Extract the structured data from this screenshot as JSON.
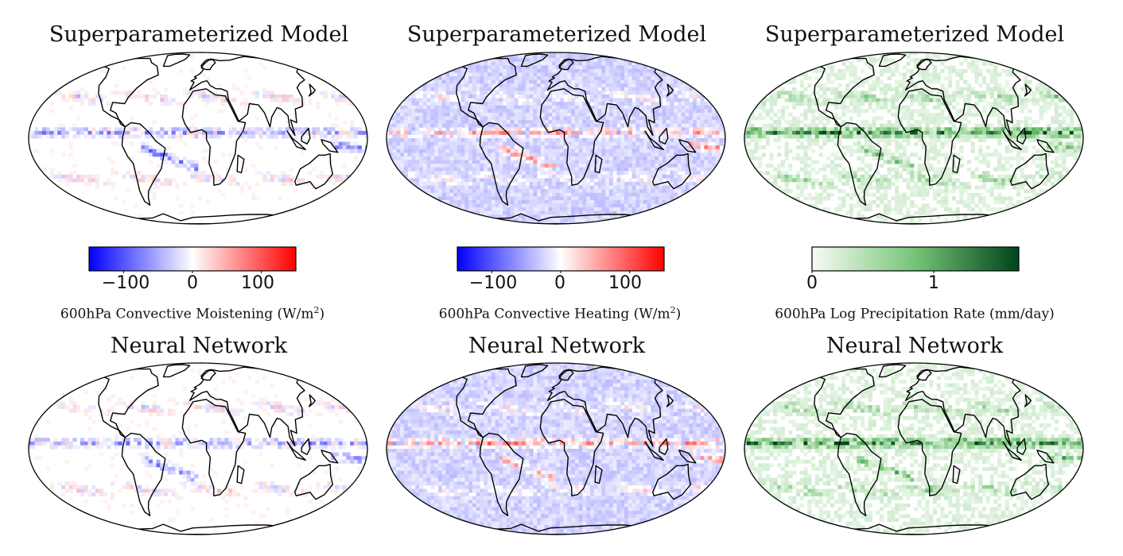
{
  "panels": [
    {
      "row": 0,
      "col": 0,
      "title": "Superparameterized Model",
      "variable": "moistening"
    },
    {
      "row": 0,
      "col": 1,
      "title": "Superparameterized Model",
      "variable": "heating"
    },
    {
      "row": 0,
      "col": 2,
      "title": "Superparameterized Model",
      "variable": "precip"
    },
    {
      "row": 1,
      "col": 0,
      "title": "Neural Network",
      "variable": "moistening"
    },
    {
      "row": 1,
      "col": 1,
      "title": "Neural Network",
      "variable": "heating"
    },
    {
      "row": 1,
      "col": 2,
      "title": "Neural Network",
      "variable": "precip"
    }
  ],
  "colorbars": [
    {
      "label": "600hPa Convective Moistening (W/m",
      "label_sup": "2",
      "label_end": ")",
      "ticks": [
        "−100",
        "0",
        "100"
      ],
      "tick_values": [
        -100,
        0,
        100
      ],
      "range": [
        -150,
        150
      ],
      "colormap": "bwr",
      "colors": [
        "#0000ff",
        "#ffffff",
        "#ff0000"
      ]
    },
    {
      "label": "600hPa Convective Heating (W/m",
      "label_sup": "2",
      "label_end": ")",
      "ticks": [
        "−100",
        "0",
        "100"
      ],
      "tick_values": [
        -100,
        0,
        100
      ],
      "range": [
        -150,
        150
      ],
      "colormap": "bwr",
      "colors": [
        "#0000ff",
        "#ffffff",
        "#ff0000"
      ]
    },
    {
      "label": "600hPa Log Precipitation Rate (mm/day)",
      "label_sup": "",
      "label_end": "",
      "ticks": [
        "0",
        "1"
      ],
      "tick_values": [
        0,
        1
      ],
      "range": [
        0,
        1.7
      ],
      "colormap": "Greens",
      "colors": [
        "#f7fcf5",
        "#74c476",
        "#00441b"
      ]
    }
  ]
}
